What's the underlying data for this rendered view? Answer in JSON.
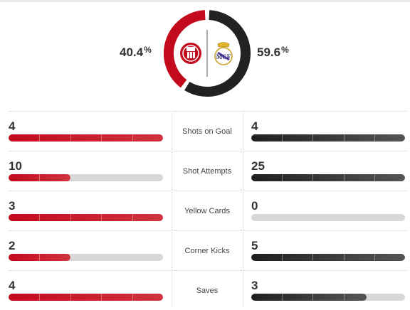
{
  "colors": {
    "home": "#c20a1c",
    "away": "#222222",
    "track": "#d7d7d7"
  },
  "possession": {
    "home": {
      "value": "40.4",
      "unit": "%",
      "crest": "girona-crest"
    },
    "away": {
      "value": "59.6",
      "unit": "%",
      "crest": "real-madrid-crest"
    }
  },
  "stats": [
    {
      "label": "Shots on Goal",
      "home": "4",
      "away": "4",
      "home_fill": 1.0,
      "away_fill": 1.0
    },
    {
      "label": "Shot Attempts",
      "home": "10",
      "away": "25",
      "home_fill": 0.4,
      "away_fill": 1.0
    },
    {
      "label": "Yellow Cards",
      "home": "3",
      "away": "0",
      "home_fill": 1.0,
      "away_fill": 0.0
    },
    {
      "label": "Corner Kicks",
      "home": "2",
      "away": "5",
      "home_fill": 0.4,
      "away_fill": 1.0
    },
    {
      "label": "Saves",
      "home": "4",
      "away": "3",
      "home_fill": 1.0,
      "away_fill": 0.75
    }
  ]
}
